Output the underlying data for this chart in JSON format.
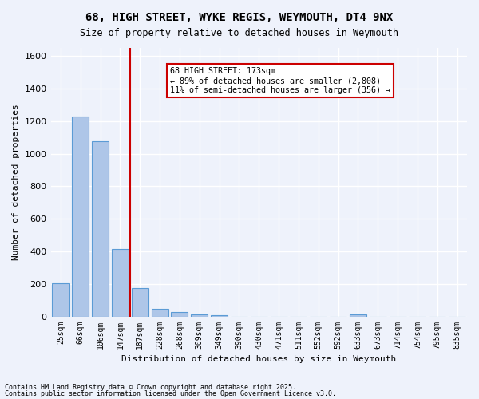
{
  "title_line1": "68, HIGH STREET, WYKE REGIS, WEYMOUTH, DT4 9NX",
  "title_line2": "Size of property relative to detached houses in Weymouth",
  "xlabel": "Distribution of detached houses by size in Weymouth",
  "ylabel": "Number of detached properties",
  "categories": [
    "25sqm",
    "66sqm",
    "106sqm",
    "147sqm",
    "187sqm",
    "228sqm",
    "268sqm",
    "309sqm",
    "349sqm",
    "390sqm",
    "430sqm",
    "471sqm",
    "511sqm",
    "552sqm",
    "592sqm",
    "633sqm",
    "673sqm",
    "714sqm",
    "754sqm",
    "795sqm",
    "835sqm"
  ],
  "values": [
    205,
    1230,
    1075,
    415,
    175,
    47,
    25,
    13,
    10,
    0,
    0,
    0,
    0,
    0,
    0,
    12,
    0,
    0,
    0,
    0,
    0
  ],
  "bar_color": "#aec6e8",
  "bar_edge_color": "#5b9bd5",
  "bg_color": "#eef2fb",
  "grid_color": "#ffffff",
  "vline_x": 4,
  "vline_color": "#cc0000",
  "annotation_text": "68 HIGH STREET: 173sqm\n← 89% of detached houses are smaller (2,808)\n11% of semi-detached houses are larger (356) →",
  "annotation_box_color": "#ffffff",
  "annotation_box_edge": "#cc0000",
  "ylim": [
    0,
    1650
  ],
  "yticks": [
    0,
    200,
    400,
    600,
    800,
    1000,
    1200,
    1400,
    1600
  ],
  "footnote1": "Contains HM Land Registry data © Crown copyright and database right 2025.",
  "footnote2": "Contains public sector information licensed under the Open Government Licence v3.0."
}
